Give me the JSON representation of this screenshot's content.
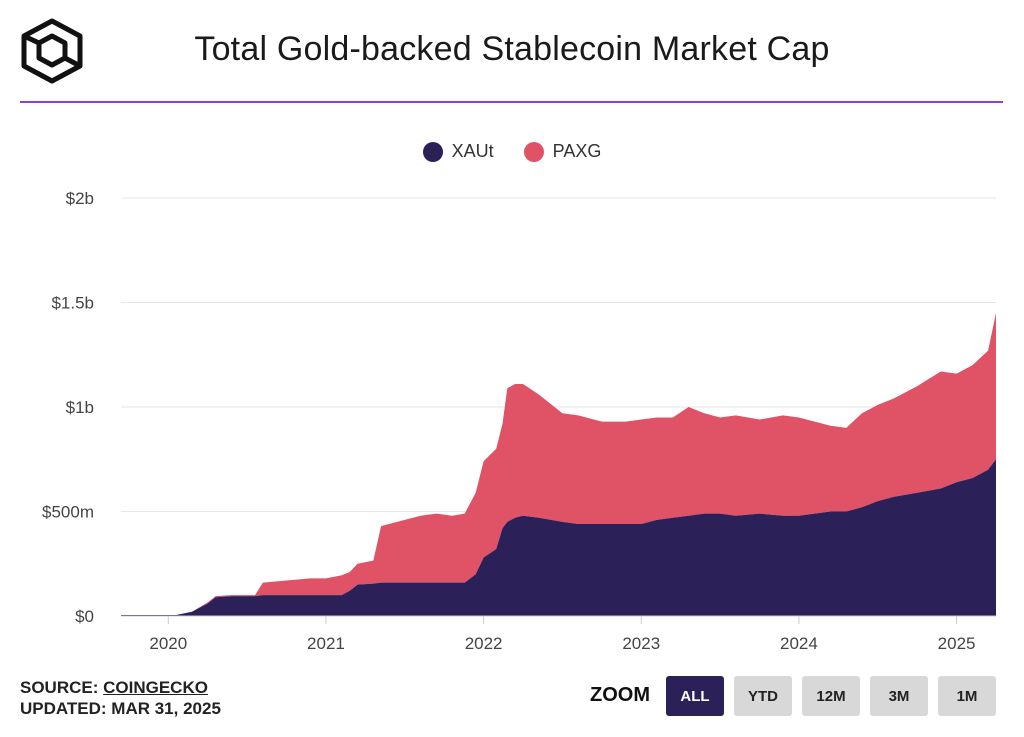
{
  "header": {
    "title": "Total Gold-backed Stablecoin Market Cap"
  },
  "logo": {
    "icon": "coingecko-cube-logo-icon"
  },
  "colors": {
    "accent_rule": "#8c3fd9",
    "xaut": "#2b2158",
    "paxg": "#e05266",
    "zoom_active": "#2b2158"
  },
  "legend": [
    {
      "label": "XAUt",
      "color": "#2b2158"
    },
    {
      "label": "PAXG",
      "color": "#e05266"
    }
  ],
  "footer": {
    "source_prefix": "SOURCE: ",
    "source_link": "COINGECKO",
    "updated": "UPDATED: MAR 31, 2025"
  },
  "zoom": {
    "label": "ZOOM",
    "options": [
      "ALL",
      "YTD",
      "12M",
      "3M",
      "1M"
    ],
    "selected": "ALL"
  },
  "chart_data": {
    "type": "area",
    "stacked": true,
    "title": "Total Gold-backed Stablecoin Market Cap",
    "xlabel": "",
    "ylabel": "",
    "xlim": [
      2019.7,
      2025.25
    ],
    "ylim": [
      0,
      2000000000
    ],
    "y_ticks": [
      {
        "value": 0,
        "label": "$0"
      },
      {
        "value": 500000000,
        "label": "$500m"
      },
      {
        "value": 1000000000,
        "label": "$1b"
      },
      {
        "value": 1500000000,
        "label": "$1.5b"
      },
      {
        "value": 2000000000,
        "label": "$2b"
      }
    ],
    "x_ticks": [
      {
        "value": 2020,
        "label": "2020"
      },
      {
        "value": 2021,
        "label": "2021"
      },
      {
        "value": 2022,
        "label": "2022"
      },
      {
        "value": 2023,
        "label": "2023"
      },
      {
        "value": 2024,
        "label": "2024"
      },
      {
        "value": 2025,
        "label": "2025"
      }
    ],
    "grid": true,
    "legend_position": "top-center",
    "x": [
      2019.7,
      2019.9,
      2020.05,
      2020.15,
      2020.25,
      2020.3,
      2020.4,
      2020.5,
      2020.55,
      2020.6,
      2020.75,
      2020.9,
      2021.0,
      2021.1,
      2021.15,
      2021.2,
      2021.3,
      2021.35,
      2021.4,
      2021.5,
      2021.6,
      2021.7,
      2021.8,
      2021.88,
      2021.95,
      2022.0,
      2022.08,
      2022.12,
      2022.15,
      2022.2,
      2022.25,
      2022.35,
      2022.5,
      2022.6,
      2022.75,
      2022.9,
      2023.0,
      2023.1,
      2023.2,
      2023.3,
      2023.4,
      2023.5,
      2023.6,
      2023.75,
      2023.9,
      2024.0,
      2024.1,
      2024.2,
      2024.3,
      2024.4,
      2024.5,
      2024.6,
      2024.75,
      2024.9,
      2025.0,
      2025.1,
      2025.2,
      2025.25
    ],
    "series": [
      {
        "name": "XAUt",
        "color": "#2b2158",
        "values": [
          5000000,
          5000000,
          5000000,
          20000000,
          60000000,
          90000000,
          95000000,
          95000000,
          95000000,
          100000000,
          100000000,
          100000000,
          100000000,
          100000000,
          120000000,
          150000000,
          155000000,
          160000000,
          160000000,
          160000000,
          160000000,
          160000000,
          160000000,
          160000000,
          200000000,
          280000000,
          320000000,
          420000000,
          450000000,
          470000000,
          480000000,
          470000000,
          450000000,
          440000000,
          440000000,
          440000000,
          440000000,
          460000000,
          470000000,
          480000000,
          490000000,
          490000000,
          480000000,
          490000000,
          480000000,
          480000000,
          490000000,
          500000000,
          500000000,
          520000000,
          550000000,
          570000000,
          590000000,
          610000000,
          640000000,
          660000000,
          700000000,
          750000000
        ]
      },
      {
        "name": "PAXG",
        "color": "#e05266",
        "values": [
          0,
          0,
          0,
          0,
          5000000,
          5000000,
          5000000,
          5000000,
          5000000,
          60000000,
          70000000,
          80000000,
          80000000,
          95000000,
          90000000,
          100000000,
          110000000,
          270000000,
          280000000,
          300000000,
          320000000,
          330000000,
          320000000,
          330000000,
          390000000,
          460000000,
          480000000,
          500000000,
          640000000,
          640000000,
          630000000,
          590000000,
          520000000,
          520000000,
          490000000,
          490000000,
          500000000,
          490000000,
          480000000,
          520000000,
          480000000,
          460000000,
          480000000,
          450000000,
          480000000,
          470000000,
          440000000,
          410000000,
          400000000,
          450000000,
          460000000,
          470000000,
          510000000,
          560000000,
          520000000,
          540000000,
          570000000,
          700000000
        ]
      }
    ]
  }
}
